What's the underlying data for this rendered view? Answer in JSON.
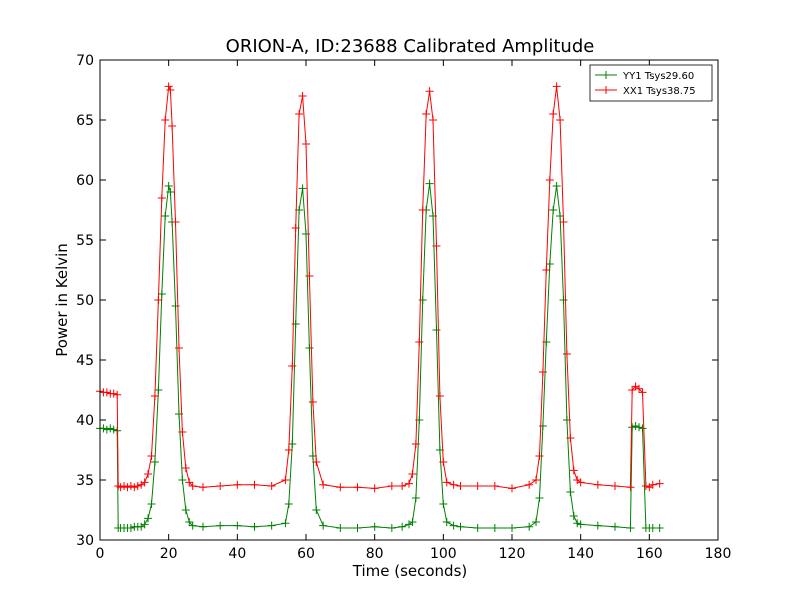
{
  "chart_data": {
    "type": "line",
    "title": "ORION-A, ID:23688 Calibrated Amplitude",
    "xlabel": "Time (seconds)",
    "ylabel": "Power in Kelvin",
    "xlim": [
      0,
      180
    ],
    "ylim": [
      30,
      70
    ],
    "xticks": [
      0,
      20,
      40,
      60,
      80,
      100,
      120,
      140,
      160,
      180
    ],
    "yticks": [
      30,
      35,
      40,
      45,
      50,
      55,
      60,
      65,
      70
    ],
    "grid": false,
    "legend_position": "top-right",
    "marker": "plus",
    "series": [
      {
        "name": "YY1 Tsys29.60",
        "color": "#008000",
        "x": [
          0,
          1,
          2,
          3,
          4,
          5,
          5.3,
          6,
          7,
          8,
          9,
          10,
          11,
          12,
          13,
          14,
          15,
          16,
          17,
          18,
          19,
          20,
          20.5,
          21,
          22,
          23,
          24,
          25,
          26,
          27,
          30,
          35,
          40,
          45,
          50,
          54,
          55,
          56,
          57,
          58,
          59,
          60,
          61,
          62,
          63,
          65,
          70,
          75,
          80,
          85,
          88,
          90,
          91,
          92,
          93,
          94,
          95,
          96,
          97,
          98,
          99,
          100,
          101,
          103,
          105,
          110,
          115,
          120,
          125,
          127,
          128,
          129,
          130,
          131,
          132,
          133,
          134,
          135,
          136,
          137,
          138,
          139,
          140,
          145,
          150,
          154.5,
          155,
          156,
          157,
          158,
          159,
          160,
          161,
          163
        ],
        "values": [
          39.3,
          39.3,
          39.2,
          39.3,
          39.2,
          39.1,
          31.0,
          31.0,
          31.0,
          31.0,
          31.0,
          31.1,
          31.1,
          31.1,
          31.3,
          31.8,
          33.0,
          36.5,
          42.5,
          50.5,
          57.0,
          59.5,
          59.0,
          56.5,
          49.5,
          40.5,
          35.0,
          32.5,
          31.5,
          31.2,
          31.1,
          31.2,
          31.2,
          31.1,
          31.2,
          31.4,
          33.0,
          38.0,
          48.0,
          57.5,
          59.3,
          55.5,
          46.0,
          37.0,
          32.5,
          31.2,
          31.0,
          31.0,
          31.1,
          31.0,
          31.1,
          31.3,
          31.5,
          33.5,
          40.0,
          50.0,
          57.5,
          59.7,
          57.0,
          47.5,
          37.5,
          33.0,
          31.5,
          31.2,
          31.1,
          31.0,
          31.0,
          31.0,
          31.1,
          31.5,
          33.5,
          39.5,
          46.5,
          53.0,
          57.5,
          59.5,
          57.0,
          50.0,
          40.0,
          34.0,
          32.0,
          31.4,
          31.3,
          31.2,
          31.1,
          31.0,
          39.4,
          39.5,
          39.4,
          39.3,
          31.0,
          31.0,
          31.0,
          31.0
        ]
      },
      {
        "name": "XX1 Tsys38.75",
        "color": "#ff0000",
        "x": [
          0,
          1,
          2,
          3,
          4,
          5,
          5.3,
          6,
          7,
          8,
          9,
          10,
          11,
          12,
          13,
          14,
          15,
          16,
          17,
          18,
          19,
          20,
          20.5,
          21,
          22,
          23,
          24,
          25,
          26,
          27,
          30,
          35,
          40,
          45,
          50,
          54,
          55,
          56,
          57,
          58,
          59,
          60,
          61,
          62,
          63,
          65,
          70,
          75,
          80,
          85,
          88,
          90,
          91,
          92,
          93,
          94,
          95,
          96,
          97,
          98,
          99,
          100,
          101,
          103,
          105,
          110,
          115,
          120,
          125,
          127,
          128,
          129,
          130,
          131,
          132,
          133,
          134,
          135,
          136,
          137,
          138,
          139,
          140,
          145,
          150,
          154.5,
          155,
          156,
          157,
          158,
          159,
          160,
          161,
          163
        ],
        "values": [
          42.4,
          42.3,
          42.3,
          42.2,
          42.2,
          42.1,
          34.5,
          34.4,
          34.5,
          34.4,
          34.5,
          34.4,
          34.5,
          34.6,
          34.8,
          35.5,
          37.0,
          42.0,
          50.0,
          58.5,
          65.0,
          67.8,
          67.5,
          64.5,
          56.5,
          46.0,
          39.0,
          36.0,
          34.8,
          34.5,
          34.4,
          34.5,
          34.6,
          34.6,
          34.5,
          35.0,
          37.5,
          44.5,
          56.0,
          65.5,
          67.0,
          63.0,
          52.0,
          41.5,
          36.5,
          34.6,
          34.4,
          34.4,
          34.3,
          34.5,
          34.5,
          34.7,
          35.5,
          38.0,
          46.5,
          57.5,
          65.5,
          67.4,
          65.0,
          54.5,
          42.0,
          36.5,
          34.8,
          34.6,
          34.5,
          34.5,
          34.5,
          34.3,
          34.6,
          35.0,
          37.0,
          44.0,
          52.5,
          60.0,
          65.5,
          67.8,
          65.0,
          56.5,
          45.5,
          38.5,
          35.8,
          35.0,
          34.8,
          34.6,
          34.5,
          34.4,
          42.5,
          42.8,
          42.6,
          42.3,
          34.5,
          34.4,
          34.6,
          34.7
        ]
      }
    ]
  }
}
